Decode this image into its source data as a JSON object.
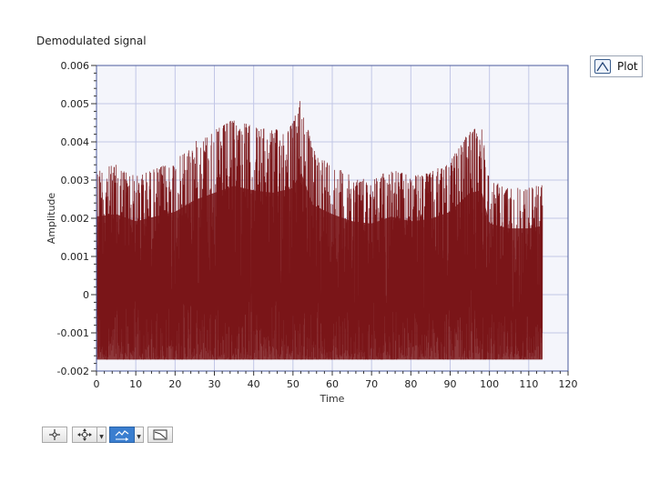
{
  "chart_data": {
    "type": "line",
    "title": "Demodulated signal",
    "xlabel": "Time",
    "ylabel": "Amplitude",
    "xlim": [
      0,
      120
    ],
    "ylim": [
      -0.002,
      0.006
    ],
    "x_ticks": [
      0,
      10,
      20,
      30,
      40,
      50,
      60,
      70,
      80,
      90,
      100,
      110,
      120
    ],
    "x_tick_labels": [
      "0",
      "10",
      "20",
      "30",
      "40",
      "50",
      "60",
      "70",
      "80",
      "90",
      "100",
      "110",
      "120"
    ],
    "y_ticks": [
      -0.002,
      -0.001,
      0,
      0.001,
      0.002,
      0.003,
      0.004,
      0.005,
      0.006
    ],
    "y_tick_labels": [
      "-0.002",
      "-0.001",
      "0",
      "0.001",
      "0.002",
      "0.003",
      "0.004",
      "0.005",
      "0.006"
    ],
    "grid": true,
    "legend_position": "top-right",
    "series": [
      {
        "name": "Plot",
        "color": "#7a1518",
        "x_range": [
          0,
          113.5
        ],
        "baseline": -0.0017,
        "envelope_x": [
          0,
          5,
          10,
          15,
          20,
          25,
          30,
          35,
          40,
          45,
          50,
          52,
          55,
          60,
          65,
          70,
          75,
          80,
          85,
          90,
          95,
          98,
          100,
          105,
          110,
          113.5
        ],
        "envelope_y": [
          0.0033,
          0.0034,
          0.0031,
          0.0033,
          0.0035,
          0.004,
          0.0043,
          0.0046,
          0.0044,
          0.0043,
          0.0045,
          0.0052,
          0.0038,
          0.0034,
          0.0031,
          0.003,
          0.0033,
          0.0031,
          0.0032,
          0.0035,
          0.0043,
          0.0044,
          0.003,
          0.0028,
          0.0028,
          0.0029
        ]
      }
    ]
  },
  "legend": {
    "label": "Plot"
  },
  "toolbar": {
    "buttons": [
      "cursor-tool",
      "pan-zoom-tool",
      "auto-scale-tool",
      "scale-format-tool"
    ]
  }
}
